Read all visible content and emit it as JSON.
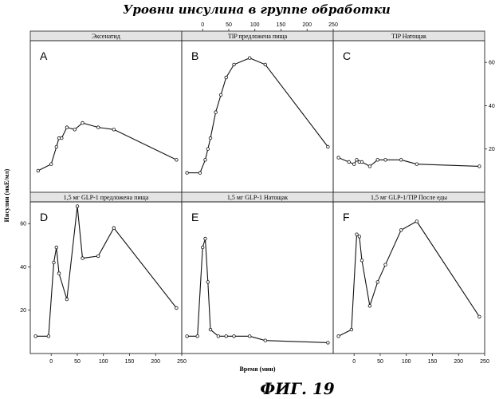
{
  "title": "Уровни инсулина в группе обработки",
  "figure_caption": "ФИГ. 19",
  "xlabel": "Время (мин)",
  "ylabel": "Инсулин (мкЕ/мл)",
  "colors": {
    "line": "#111111",
    "marker_fill": "#ffffff",
    "strip_bg": "#e4e4e4"
  },
  "chart_data": [
    {
      "type": "line",
      "panel_letter": "A",
      "strip_label": "Эксенатид",
      "xlim": [
        -40,
        250
      ],
      "ylim": [
        0,
        70
      ],
      "x": [
        -25,
        0,
        10,
        15,
        20,
        30,
        45,
        60,
        90,
        120,
        240
      ],
      "y": [
        10,
        13,
        21,
        25,
        25,
        30,
        29,
        32,
        30,
        29,
        15
      ]
    },
    {
      "type": "line",
      "panel_letter": "B",
      "strip_label": "TIP предложена пища",
      "xlim": [
        -40,
        250
      ],
      "ylim": [
        0,
        70
      ],
      "x": [
        -30,
        -5,
        5,
        10,
        15,
        25,
        35,
        45,
        60,
        90,
        120,
        240
      ],
      "y": [
        9,
        9,
        15,
        20,
        25,
        37,
        45,
        53,
        59,
        62,
        59,
        21
      ]
    },
    {
      "type": "line",
      "panel_letter": "C",
      "strip_label": "TIP Натощак",
      "xlim": [
        -40,
        250
      ],
      "ylim": [
        0,
        70
      ],
      "x": [
        -30,
        -10,
        0,
        5,
        10,
        15,
        30,
        45,
        60,
        90,
        120,
        240
      ],
      "y": [
        16,
        14,
        13,
        15,
        14,
        14,
        12,
        15,
        15,
        15,
        13,
        12
      ]
    },
    {
      "type": "line",
      "panel_letter": "D",
      "strip_label": "1,5 мг GLP-1 предложена пища",
      "xlim": [
        -40,
        250
      ],
      "ylim": [
        0,
        70
      ],
      "x": [
        -30,
        -5,
        5,
        10,
        15,
        30,
        50,
        60,
        90,
        120,
        240
      ],
      "y": [
        8,
        8,
        42,
        49,
        37,
        25,
        68,
        44,
        45,
        58,
        21
      ]
    },
    {
      "type": "line",
      "panel_letter": "E",
      "strip_label": "1,5 мг GLP-1 Натощак",
      "xlim": [
        -40,
        250
      ],
      "ylim": [
        0,
        70
      ],
      "x": [
        -30,
        -10,
        0,
        5,
        10,
        15,
        30,
        45,
        60,
        90,
        120,
        240
      ],
      "y": [
        8,
        8,
        49,
        53,
        33,
        11,
        8,
        8,
        8,
        8,
        6,
        5
      ]
    },
    {
      "type": "line",
      "panel_letter": "F",
      "strip_label": "1,5 мг GLP-1/TIP После еды",
      "xlim": [
        -40,
        250
      ],
      "ylim": [
        0,
        70
      ],
      "x": [
        -30,
        -5,
        5,
        10,
        15,
        30,
        45,
        60,
        90,
        120,
        240
      ],
      "y": [
        8,
        11,
        55,
        54,
        43,
        22,
        33,
        41,
        57,
        61,
        17
      ]
    }
  ],
  "axes": {
    "x_ticks": [
      "0",
      "50",
      "100",
      "150",
      "200",
      "250"
    ],
    "x_tick_values": [
      0,
      50,
      100,
      150,
      200,
      250
    ],
    "y_ticks": [
      "20",
      "40",
      "60"
    ],
    "y_tick_values": [
      20,
      40,
      60
    ]
  }
}
